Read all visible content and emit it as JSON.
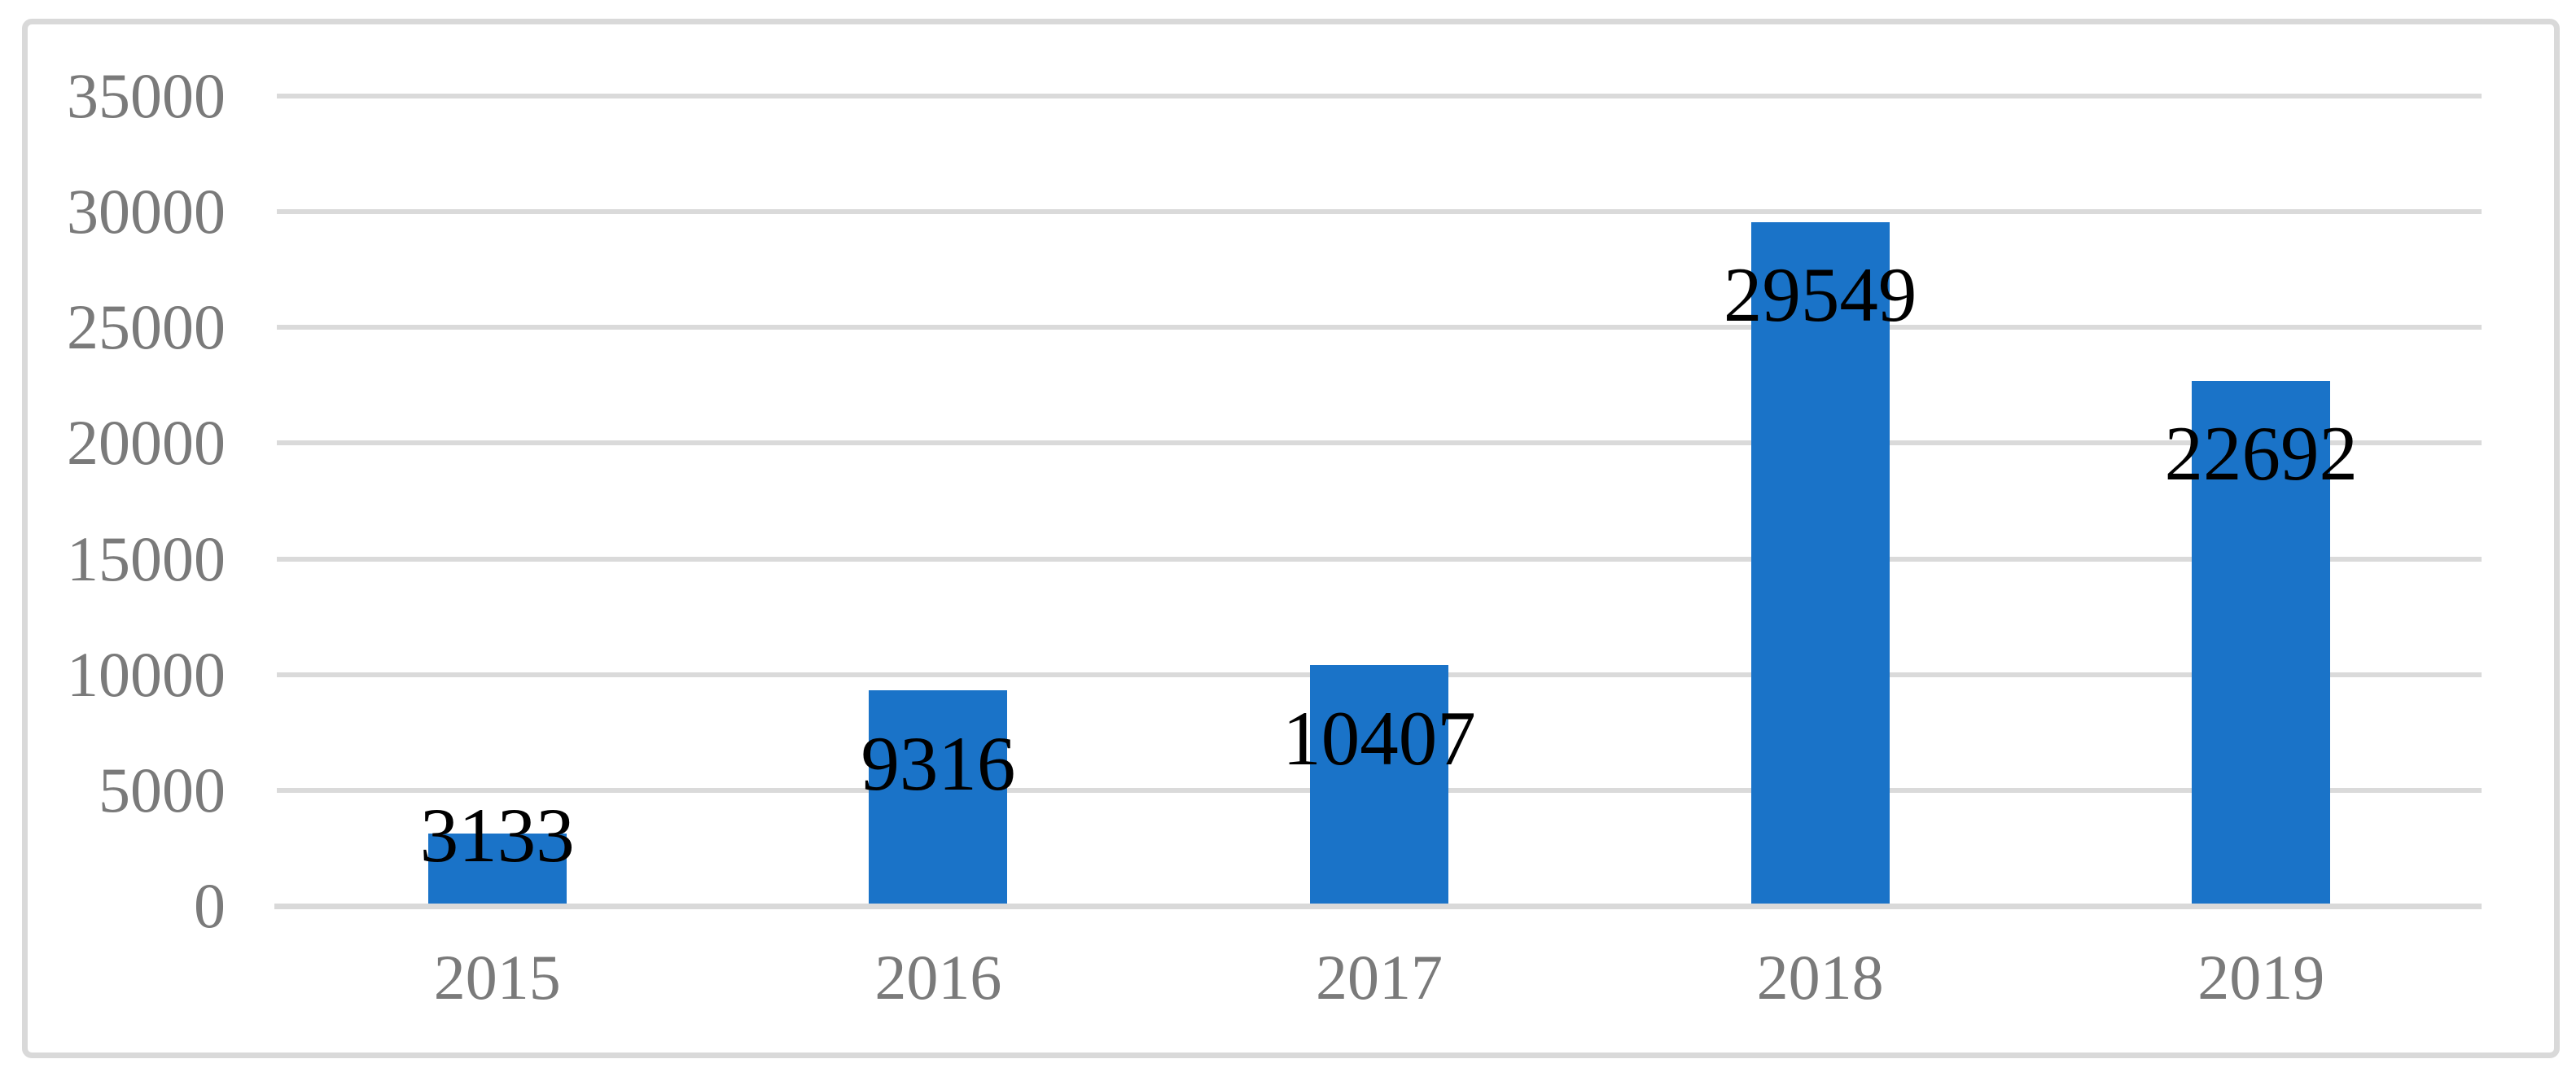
{
  "chart_data": {
    "type": "bar",
    "categories": [
      "2015",
      "2016",
      "2017",
      "2018",
      "2019"
    ],
    "values": [
      3133,
      9316,
      10407,
      29549,
      22692
    ],
    "data_labels": [
      "3133",
      "9316",
      "10407",
      "29549",
      "22692"
    ],
    "yticks": [
      0,
      5000,
      10000,
      15000,
      20000,
      25000,
      30000,
      35000
    ],
    "ytick_labels": [
      "0",
      "5000",
      "10000",
      "15000",
      "20000",
      "25000",
      "30000",
      "35000"
    ],
    "ylim": [
      0,
      35000
    ],
    "grid": "horizontal",
    "legend": "none",
    "title": "",
    "xlabel": "",
    "ylabel": "",
    "colors": {
      "bar": "#1A73C8",
      "gridline": "#DADADA",
      "axis_line": "#D9D9D9",
      "axis_text": "#7A7A7A",
      "data_label_text": "#000000",
      "frame_border": "#D9D9D9",
      "background": "#FFFFFF"
    }
  }
}
